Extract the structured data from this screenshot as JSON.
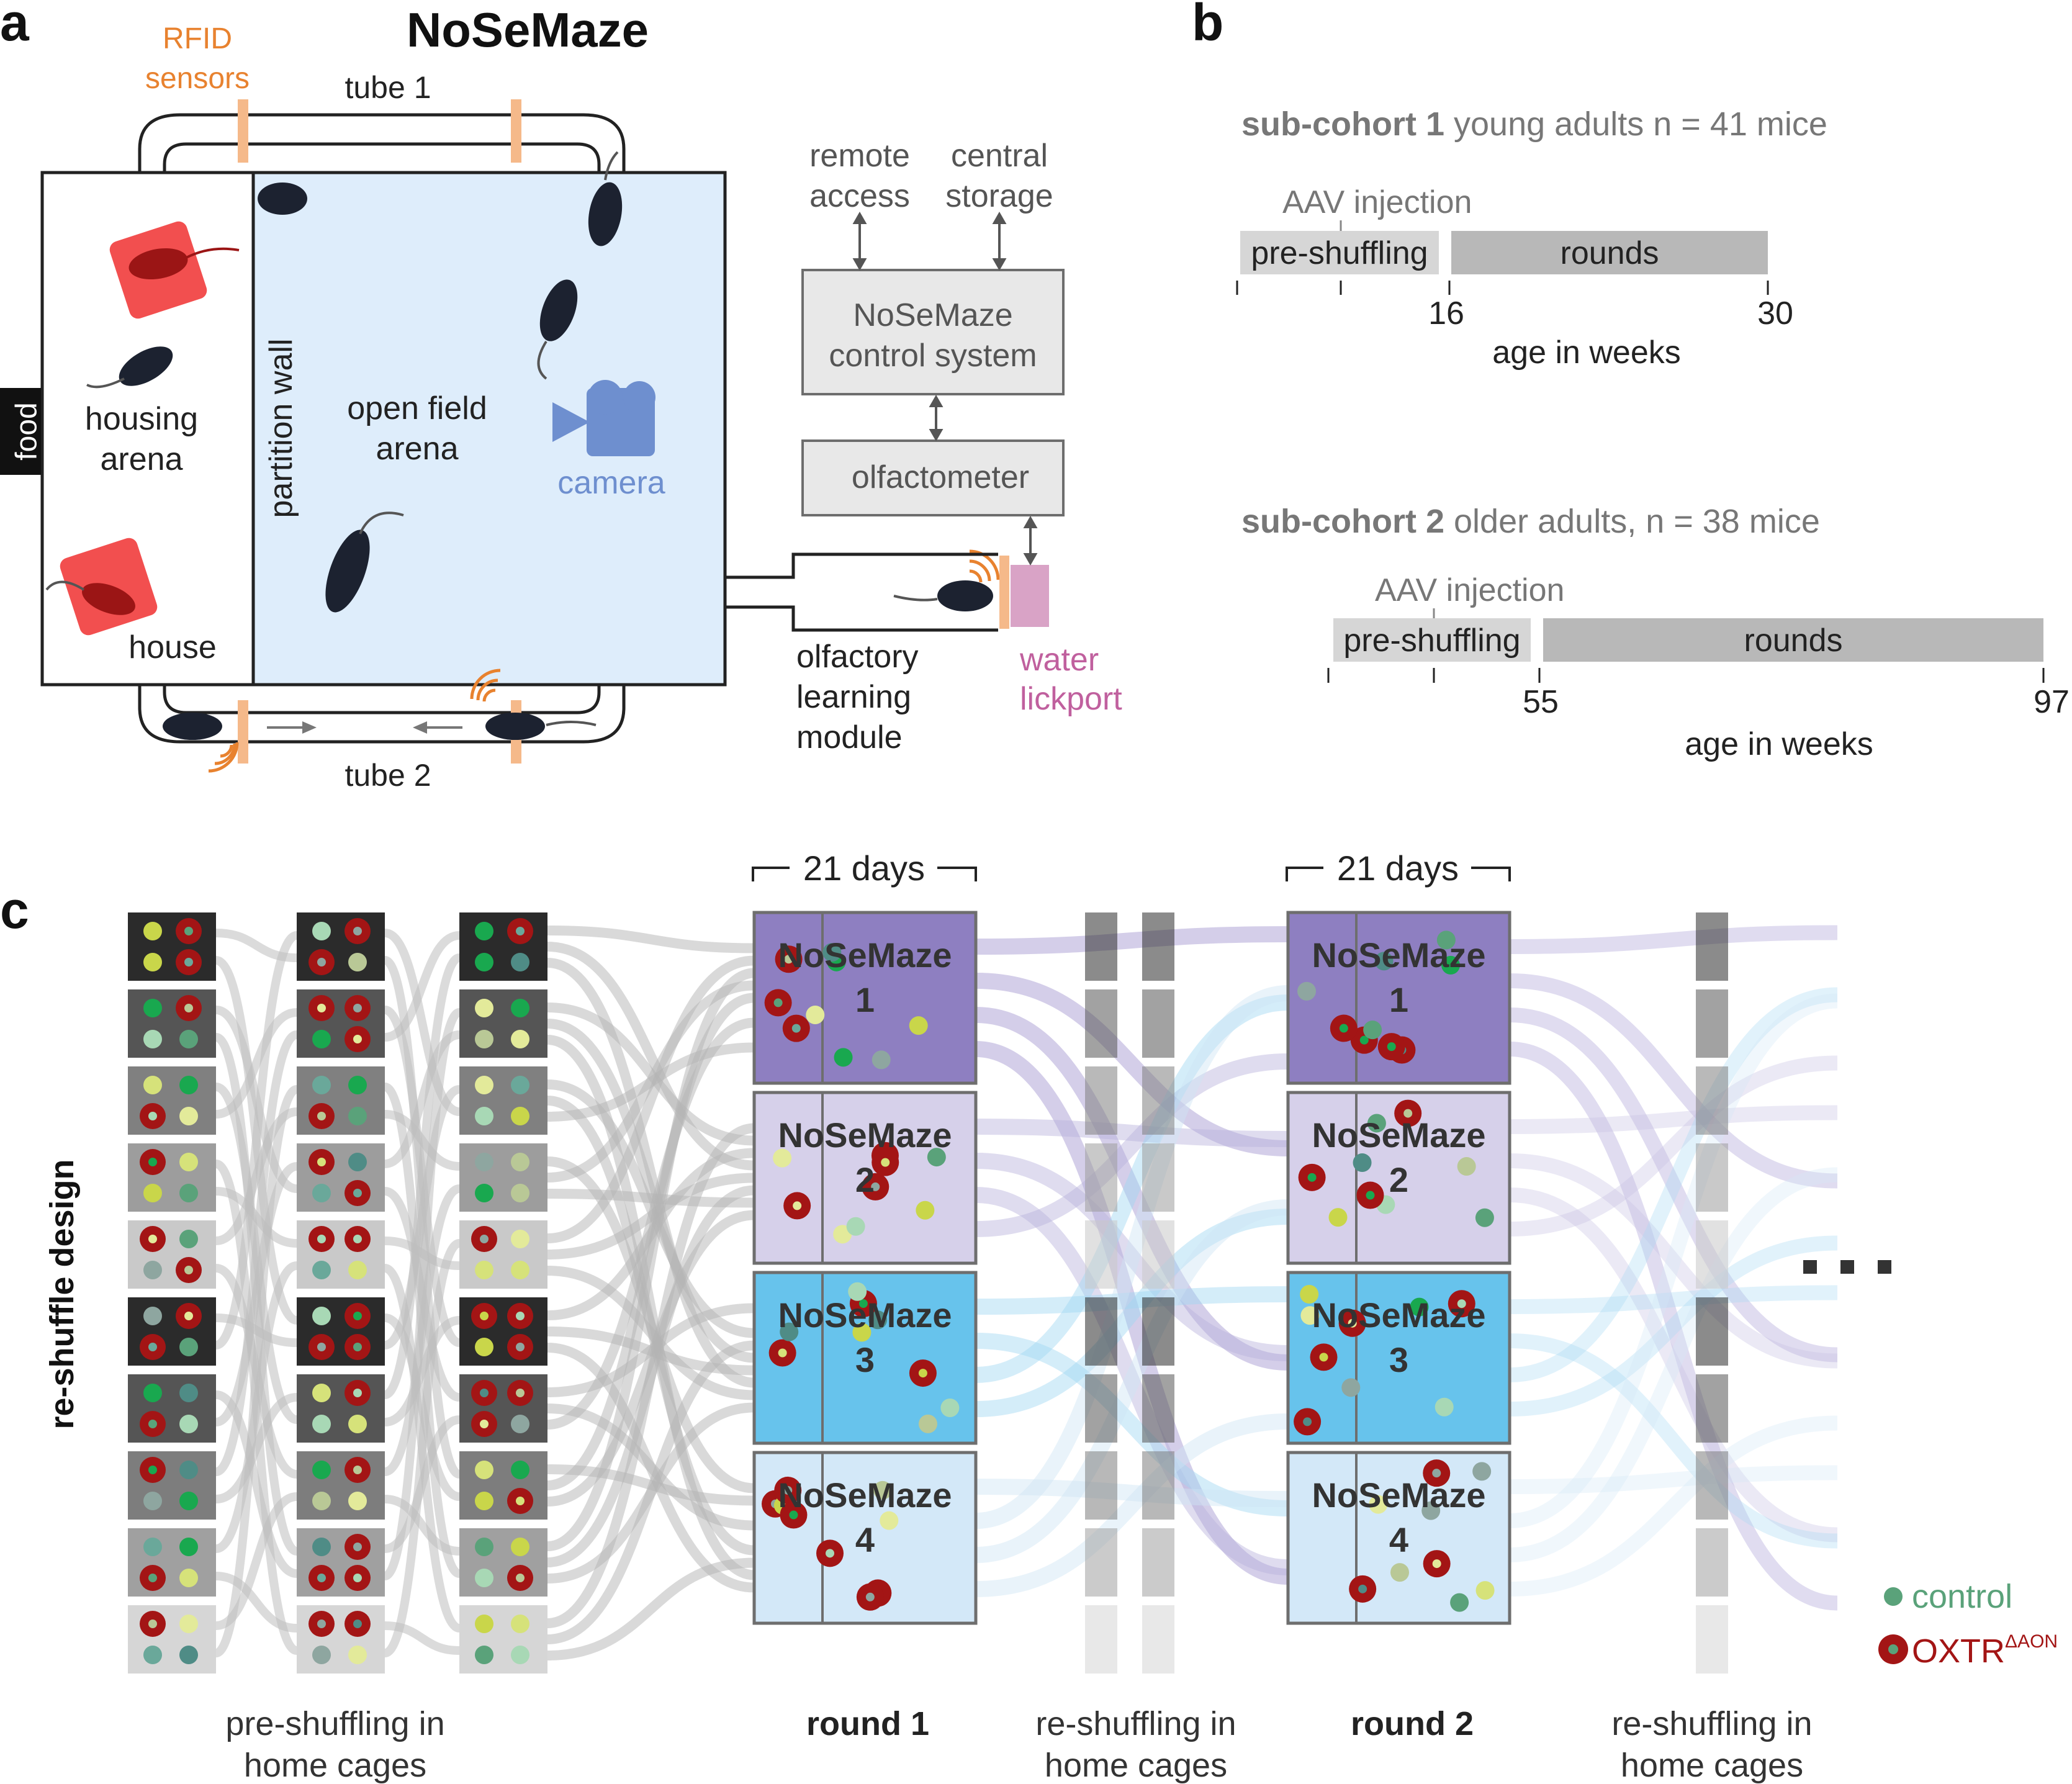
{
  "panel_a": {
    "letter": "a",
    "title": "NoSeMaze",
    "rfid_line1": "RFID",
    "rfid_line2": "sensors",
    "tube1": "tube 1",
    "tube2": "tube 2",
    "food": "food",
    "housing_line1": "housing",
    "housing_line2": "arena",
    "house": "house",
    "partition": "partition wall",
    "openfield_line1": "open field",
    "openfield_line2": "arena",
    "camera": "camera",
    "remote_line1": "remote",
    "remote_line2": "access",
    "central_line1": "central",
    "central_line2": "storage",
    "control_line1": "NoSeMaze",
    "control_line2": "control system",
    "olfactometer": "olfactometer",
    "module_line1": "olfactory",
    "module_line2": "learning",
    "module_line3": "module",
    "water_line1": "water",
    "water_line2": "lickport",
    "colors": {
      "arena_fill": "#deedfb",
      "rfid": "#f5b98a",
      "rfid_text": "#e8822f",
      "camera": "#6e8fcf",
      "lickport": "#d9a3c6",
      "lickport_text": "#c0609e",
      "house_fill": "#f24f4f"
    }
  },
  "panel_b": {
    "letter": "b",
    "cohorts": [
      {
        "name": "sub-cohort 1",
        "desc": " young adults n = 41 mice",
        "aav": "AAV injection",
        "pre": "pre-shuffling",
        "rounds": "rounds",
        "tick1": "16",
        "tick2": "30",
        "axis": "age in weeks"
      },
      {
        "name": "sub-cohort 2",
        "desc": " older adults, n = 38 mice",
        "aav": "AAV injection",
        "pre": "pre-shuffling",
        "rounds": "rounds",
        "tick1": "55",
        "tick2": "97",
        "axis": "age in weeks"
      }
    ]
  },
  "panel_c": {
    "letter": "c",
    "side_label": "re-shuffle design",
    "days1": "21 days",
    "days2": "21 days",
    "maze_name": "NoSeMaze",
    "maze_numbers": [
      "1",
      "2",
      "3",
      "4"
    ],
    "maze_colors": [
      "#8e7fc1",
      "#d6d0ea",
      "#67c3ec",
      "#d3e8f8"
    ],
    "label_preshuffle_line1": "pre-shuffling in",
    "label_preshuffle_line2": "home cages",
    "label_round1": "round 1",
    "label_reshuffle1_line1": "re-shuffling in",
    "label_reshuffle1_line2": "home cages",
    "label_round2": "round 2",
    "label_reshuffle2_line1": "re-shuffling in",
    "label_reshuffle2_line2": "home cages",
    "ellipsis": "…",
    "legend_control": "control",
    "legend_oxtr": "OXTR",
    "legend_oxtr_sup": "ΔAON",
    "colors": {
      "control": "#5aa27a",
      "oxtr": "#a31515"
    }
  }
}
